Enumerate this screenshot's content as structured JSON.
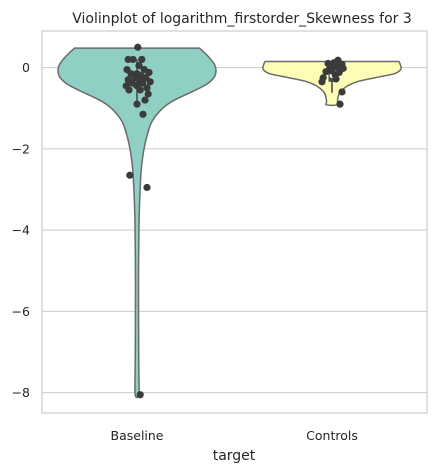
{
  "chart_data": {
    "type": "violin",
    "title": "Violinplot of logarithm_firstorder_Skewness for 3",
    "xlabel": "target",
    "ylabel": "",
    "categories": [
      "Baseline",
      "Controls"
    ],
    "ylim": [
      -8.5,
      0.9
    ],
    "yticks": [
      0,
      -2,
      -4,
      -6,
      -8
    ],
    "ytick_labels": [
      "0",
      "−2",
      "−4",
      "−6",
      "−8"
    ],
    "grid": "horizontal",
    "colors": {
      "Baseline": "#8fcfc4",
      "Controls": "#fdfdb5",
      "edge": "#6b6b6b",
      "point": "#3b3b3b",
      "grid": "#cccccc",
      "frame": "#cccccc"
    },
    "violins": [
      {
        "category": "Baseline",
        "density": [
          [
            0.48,
            0.8
          ],
          [
            0.3,
            0.9
          ],
          [
            0.05,
            1.0
          ],
          [
            -0.2,
            1.0
          ],
          [
            -0.4,
            0.9
          ],
          [
            -0.6,
            0.7
          ],
          [
            -0.8,
            0.48
          ],
          [
            -1.0,
            0.33
          ],
          [
            -1.3,
            0.2
          ],
          [
            -1.6,
            0.14
          ],
          [
            -2.0,
            0.09
          ],
          [
            -2.5,
            0.055
          ],
          [
            -3.0,
            0.04
          ],
          [
            -3.5,
            0.03
          ],
          [
            -4.0,
            0.025
          ],
          [
            -5.0,
            0.02
          ],
          [
            -6.0,
            0.02
          ],
          [
            -7.0,
            0.022
          ],
          [
            -7.5,
            0.024
          ],
          [
            -8.05,
            0.024
          ]
        ],
        "box": {
          "q1": -0.5,
          "median": -0.3,
          "q3": -0.15,
          "whisker_low": -0.85,
          "whisker_high": 0.2
        },
        "points": [
          [
            0.02,
            0.5
          ],
          [
            -0.22,
            0.2
          ],
          [
            -0.1,
            0.2
          ],
          [
            0.12,
            0.2
          ],
          [
            0.05,
            0.05
          ],
          [
            -0.25,
            -0.05
          ],
          [
            0.18,
            -0.05
          ],
          [
            0.3,
            -0.12
          ],
          [
            -0.15,
            -0.15
          ],
          [
            0.0,
            -0.15
          ],
          [
            0.1,
            -0.2
          ],
          [
            -0.05,
            -0.25
          ],
          [
            0.22,
            -0.25
          ],
          [
            -0.22,
            -0.3
          ],
          [
            0.05,
            -0.3
          ],
          [
            0.33,
            -0.35
          ],
          [
            -0.12,
            -0.38
          ],
          [
            0.14,
            -0.38
          ],
          [
            -0.27,
            -0.45
          ],
          [
            0.0,
            -0.45
          ],
          [
            0.25,
            -0.5
          ],
          [
            -0.2,
            -0.55
          ],
          [
            0.08,
            -0.55
          ],
          [
            0.28,
            -0.65
          ],
          [
            0.2,
            -0.8
          ],
          [
            0.0,
            -0.9
          ],
          [
            0.15,
            -1.15
          ],
          [
            -0.18,
            -2.65
          ],
          [
            0.25,
            -2.95
          ],
          [
            0.08,
            -8.05
          ]
        ]
      },
      {
        "category": "Controls",
        "density": [
          [
            0.15,
            0.86
          ],
          [
            0.05,
            0.88
          ],
          [
            -0.05,
            0.88
          ],
          [
            -0.15,
            0.8
          ],
          [
            -0.25,
            0.55
          ],
          [
            -0.35,
            0.32
          ],
          [
            -0.45,
            0.2
          ],
          [
            -0.55,
            0.13
          ],
          [
            -0.65,
            0.09
          ],
          [
            -0.75,
            0.075
          ],
          [
            -0.85,
            0.07
          ],
          [
            -0.92,
            0.07
          ]
        ],
        "box": {
          "q1": -0.35,
          "median": -0.2,
          "q3": -0.05,
          "whisker_low": -0.62,
          "whisker_high": 0.15
        },
        "points": [
          [
            0.15,
            0.18
          ],
          [
            -0.1,
            0.1
          ],
          [
            0.05,
            0.12
          ],
          [
            0.25,
            0.08
          ],
          [
            -0.05,
            0.0
          ],
          [
            0.12,
            0.02
          ],
          [
            0.28,
            -0.02
          ],
          [
            0.0,
            -0.08
          ],
          [
            -0.15,
            -0.1
          ],
          [
            0.18,
            -0.12
          ],
          [
            0.08,
            -0.18
          ],
          [
            -0.22,
            -0.25
          ],
          [
            0.1,
            -0.28
          ],
          [
            -0.25,
            -0.35
          ],
          [
            0.25,
            -0.6
          ],
          [
            0.2,
            -0.9
          ]
        ]
      }
    ]
  }
}
